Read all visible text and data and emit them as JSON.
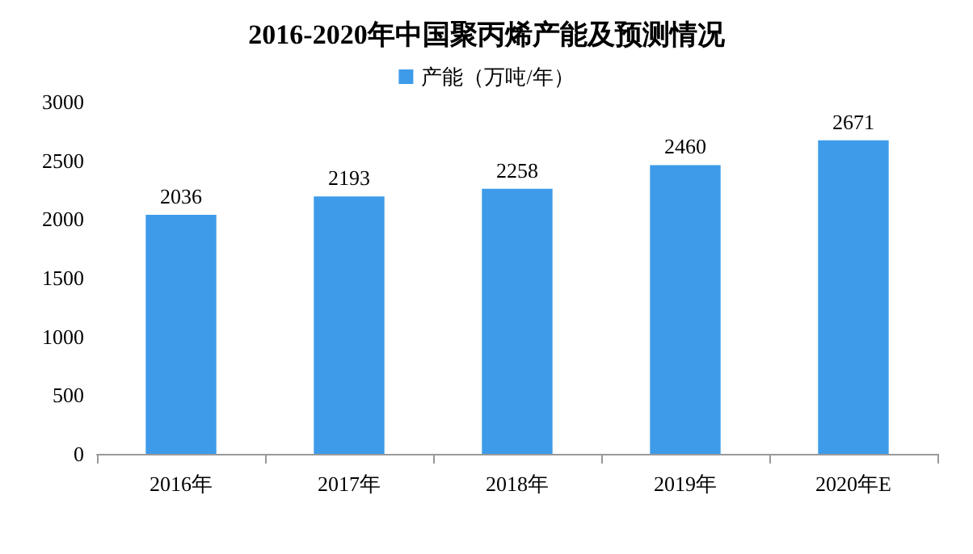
{
  "chart_data": {
    "type": "bar",
    "title": "2016-2020年中国聚丙烯产能及预测情况",
    "categories": [
      "2016年",
      "2017年",
      "2018年",
      "2019年",
      "2020年E"
    ],
    "series": [
      {
        "name": "产能（万吨/年）",
        "color": "#3d9be9",
        "values": [
          2036,
          2193,
          2258,
          2460,
          2671
        ]
      }
    ],
    "ylim": [
      0,
      3000
    ],
    "yticks": [
      0,
      500,
      1000,
      1500,
      2000,
      2500,
      3000
    ],
    "grid": false,
    "legend": "top",
    "data_labels": true
  }
}
